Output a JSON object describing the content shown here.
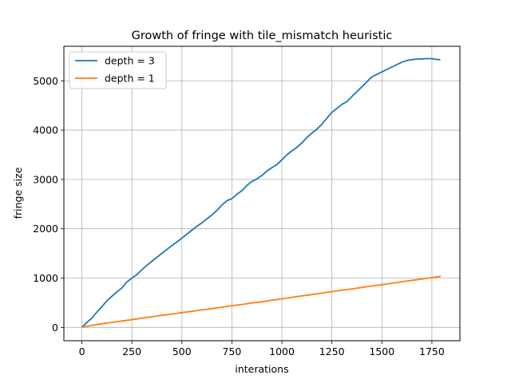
{
  "chart_data": {
    "type": "line",
    "title": "Growth of fringe with tile_mismatch heuristic",
    "xlabel": "interations",
    "ylabel": "fringe size",
    "xlim": [
      -90,
      1890
    ],
    "ylim": [
      -270,
      5700
    ],
    "xticks": [
      0,
      250,
      500,
      750,
      1000,
      1250,
      1500,
      1750
    ],
    "yticks": [
      0,
      1000,
      2000,
      3000,
      4000,
      5000
    ],
    "grid": true,
    "legend_position": "upper-left",
    "series": [
      {
        "name": "depth = 3",
        "color": "#1f77b4",
        "x": [
          0,
          25,
          50,
          75,
          100,
          125,
          150,
          175,
          200,
          225,
          250,
          275,
          300,
          325,
          350,
          375,
          400,
          425,
          450,
          475,
          500,
          525,
          550,
          575,
          600,
          625,
          650,
          675,
          700,
          725,
          750,
          775,
          800,
          825,
          850,
          875,
          900,
          925,
          950,
          975,
          1000,
          1025,
          1050,
          1075,
          1100,
          1125,
          1150,
          1175,
          1200,
          1225,
          1250,
          1275,
          1300,
          1325,
          1350,
          1375,
          1400,
          1425,
          1450,
          1475,
          1500,
          1525,
          1550,
          1575,
          1600,
          1625,
          1650,
          1675,
          1700,
          1725,
          1750,
          1765,
          1780,
          1792
        ],
        "y": [
          0,
          100,
          190,
          310,
          420,
          540,
          630,
          720,
          800,
          920,
          1000,
          1070,
          1170,
          1260,
          1340,
          1420,
          1500,
          1580,
          1660,
          1730,
          1810,
          1890,
          1970,
          2050,
          2120,
          2200,
          2280,
          2370,
          2480,
          2570,
          2610,
          2700,
          2770,
          2880,
          2960,
          3010,
          3080,
          3170,
          3240,
          3300,
          3400,
          3500,
          3580,
          3650,
          3740,
          3850,
          3940,
          4020,
          4120,
          4240,
          4360,
          4440,
          4520,
          4580,
          4680,
          4780,
          4880,
          4980,
          5080,
          5130,
          5180,
          5230,
          5280,
          5330,
          5380,
          5410,
          5430,
          5440,
          5445,
          5450,
          5450,
          5440,
          5430,
          5430
        ]
      },
      {
        "name": "depth = 1",
        "color": "#ff7f0e",
        "x": [
          0,
          50,
          100,
          150,
          200,
          250,
          300,
          350,
          400,
          450,
          500,
          550,
          600,
          650,
          700,
          750,
          800,
          850,
          900,
          950,
          1000,
          1050,
          1100,
          1150,
          1200,
          1250,
          1300,
          1350,
          1400,
          1450,
          1500,
          1550,
          1600,
          1650,
          1700,
          1750,
          1795
        ],
        "y": [
          0,
          40,
          75,
          100,
          130,
          155,
          190,
          215,
          245,
          270,
          300,
          325,
          355,
          380,
          410,
          440,
          465,
          495,
          520,
          550,
          580,
          610,
          640,
          665,
          695,
          725,
          755,
          780,
          810,
          840,
          865,
          895,
          925,
          955,
          980,
          1010,
          1035
        ]
      }
    ]
  }
}
